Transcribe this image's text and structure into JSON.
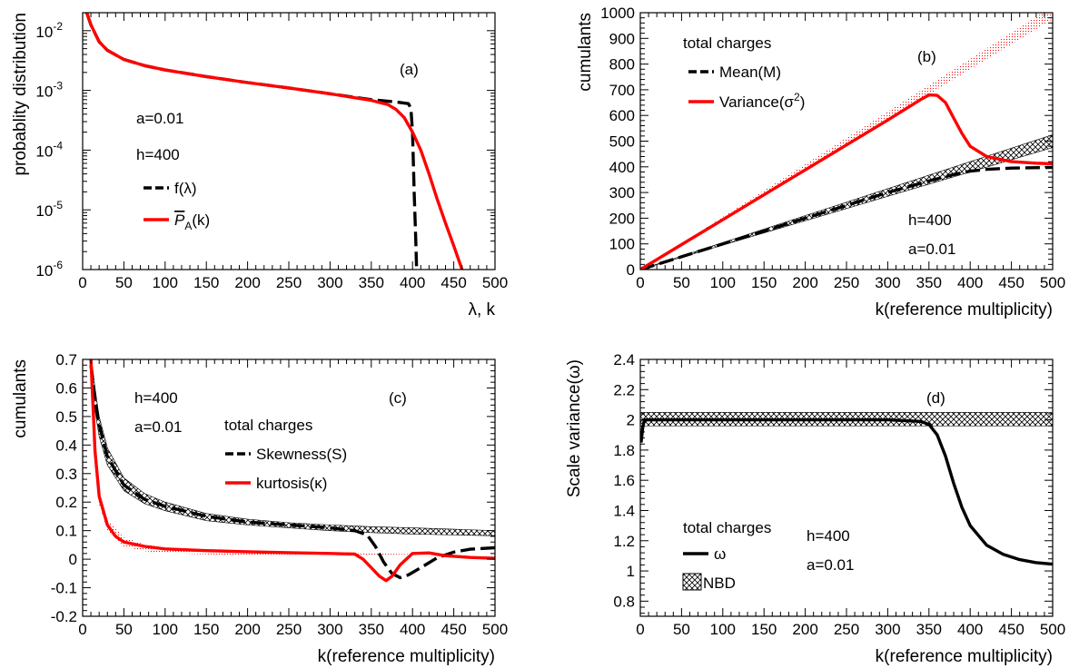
{
  "chart_data": [
    {
      "id": "a",
      "type": "line",
      "panel_label": "(a)",
      "xlabel": "λ, k",
      "ylabel": "probablity distribution",
      "xlim": [
        0,
        500
      ],
      "ylim": [
        1e-06,
        0.02
      ],
      "yscale": "log",
      "x_ticks": [
        0,
        50,
        100,
        150,
        200,
        250,
        300,
        350,
        400,
        450,
        500
      ],
      "y_ticks": [
        {
          "value": 0.01,
          "base": "10",
          "exp": "-2"
        },
        {
          "value": 0.001,
          "base": "10",
          "exp": "-3"
        },
        {
          "value": 0.0001,
          "base": "10",
          "exp": "-4"
        },
        {
          "value": 1e-05,
          "base": "10",
          "exp": "-5"
        },
        {
          "value": 1e-06,
          "base": "10",
          "exp": "-6"
        }
      ],
      "annotations": [
        "a=0.01",
        "h=400"
      ],
      "series": [
        {
          "name": "f(λ)",
          "color": "#000000",
          "dash": "dash",
          "x": [
            5,
            10,
            20,
            30,
            50,
            75,
            100,
            150,
            200,
            250,
            300,
            350,
            380,
            395,
            398,
            400,
            402,
            404,
            405
          ],
          "y": [
            0.02,
            0.0125,
            0.0065,
            0.0047,
            0.0033,
            0.0026,
            0.0022,
            0.0017,
            0.00135,
            0.0011,
            0.00088,
            0.0007,
            0.00064,
            0.0006,
            0.0005,
            0.0002,
            2e-05,
            3e-06,
            1e-06
          ]
        },
        {
          "name": "P_A(k)",
          "legend_main": "P",
          "legend_sub": "A",
          "legend_tail": "(k)",
          "color": "#ff0000",
          "dash": "solid",
          "x": [
            5,
            10,
            20,
            30,
            50,
            75,
            100,
            150,
            200,
            250,
            300,
            350,
            370,
            380,
            390,
            400,
            410,
            420,
            430,
            440,
            450,
            460
          ],
          "y": [
            0.02,
            0.0125,
            0.0065,
            0.0047,
            0.0033,
            0.0026,
            0.0022,
            0.0017,
            0.00135,
            0.0011,
            0.00088,
            0.00068,
            0.00058,
            0.00048,
            0.00035,
            0.0002,
            0.0001,
            4e-05,
            1.5e-05,
            6e-06,
            2.5e-06,
            1e-06
          ]
        }
      ]
    },
    {
      "id": "b",
      "type": "line",
      "panel_label": "(b)",
      "xlabel": "k(reference multiplicity)",
      "ylabel": "cumulants",
      "xlim": [
        0,
        500
      ],
      "ylim": [
        0,
        1000
      ],
      "x_ticks": [
        0,
        50,
        100,
        150,
        200,
        250,
        300,
        350,
        400,
        450,
        500
      ],
      "y_ticks": [
        0,
        100,
        200,
        300,
        400,
        500,
        600,
        700,
        800,
        900,
        1000
      ],
      "legend_title": "total charges",
      "annotations": [
        "h=400",
        "a=0.01"
      ],
      "bands": [
        {
          "style": "red-dots",
          "x": [
            0,
            500
          ],
          "lower": [
            0,
            975
          ],
          "upper": [
            0,
            1025
          ]
        },
        {
          "style": "hatch",
          "x": [
            0,
            500
          ],
          "lower": [
            0,
            475
          ],
          "upper": [
            0,
            525
          ]
        }
      ],
      "series": [
        {
          "name": "Mean(M)",
          "color": "#000000",
          "dash": "dash",
          "x": [
            0,
            50,
            100,
            150,
            200,
            250,
            300,
            350,
            380,
            400,
            420,
            450,
            500
          ],
          "y": [
            0,
            50,
            100,
            150,
            200,
            250,
            300,
            345,
            370,
            383,
            390,
            395,
            398
          ]
        },
        {
          "name": "Variance(σ²)",
          "legend_main": "Variance(σ",
          "legend_sup": "2",
          "legend_tail": ")",
          "color": "#ff0000",
          "dash": "solid",
          "x": [
            0,
            50,
            100,
            150,
            200,
            250,
            300,
            340,
            350,
            360,
            370,
            380,
            390,
            400,
            420,
            450,
            480,
            500
          ],
          "y": [
            0,
            97,
            194,
            291,
            388,
            485,
            582,
            662,
            680,
            678,
            650,
            590,
            530,
            480,
            440,
            420,
            414,
            412
          ]
        }
      ]
    },
    {
      "id": "c",
      "type": "line",
      "panel_label": "(c)",
      "xlabel": "k(reference multiplicity)",
      "ylabel": "cumulants",
      "xlim": [
        0,
        500
      ],
      "ylim": [
        -0.2,
        0.7
      ],
      "x_ticks": [
        0,
        50,
        100,
        150,
        200,
        250,
        300,
        350,
        400,
        450,
        500
      ],
      "y_ticks": [
        -0.2,
        -0.1,
        0,
        0.1,
        0.2,
        0.3,
        0.4,
        0.5,
        0.6,
        0.7
      ],
      "y_tick_labels": [
        "-0.2",
        "-0.1",
        "0",
        "0.1",
        "0.2",
        "0.3",
        "0.4",
        "0.5",
        "0.6",
        "0.7"
      ],
      "legend_title": "total charges",
      "annotations": [
        "h=400",
        "a=0.01"
      ],
      "bands": [
        {
          "style": "hatch",
          "x": [
            10,
            15,
            20,
            30,
            50,
            75,
            100,
            150,
            200,
            250,
            300,
            350,
            400,
            450,
            500
          ],
          "lower": [
            0.64,
            0.52,
            0.43,
            0.33,
            0.24,
            0.195,
            0.17,
            0.135,
            0.12,
            0.11,
            0.1,
            0.093,
            0.088,
            0.085,
            0.082
          ],
          "upper": [
            0.72,
            0.6,
            0.5,
            0.39,
            0.285,
            0.23,
            0.2,
            0.16,
            0.14,
            0.128,
            0.12,
            0.114,
            0.11,
            0.105,
            0.1
          ]
        },
        {
          "style": "red-dots",
          "x": [
            10,
            15,
            20,
            30,
            50,
            75,
            100,
            150,
            200,
            250,
            300,
            350,
            400,
            450,
            500
          ],
          "lower": [
            0.6,
            0.34,
            0.19,
            0.1,
            0.045,
            0.028,
            0.021,
            0.017,
            0.015,
            0.013,
            0.012,
            0.011,
            0.01,
            0.009,
            0.008
          ],
          "upper": [
            0.66,
            0.4,
            0.24,
            0.14,
            0.075,
            0.052,
            0.04,
            0.03,
            0.026,
            0.024,
            0.022,
            0.02,
            0.018,
            0.016,
            0.015
          ]
        }
      ],
      "series": [
        {
          "name": "Skewness(S)",
          "color": "#000000",
          "dash": "dash",
          "x": [
            10,
            15,
            20,
            30,
            50,
            75,
            100,
            150,
            200,
            250,
            300,
            330,
            345,
            355,
            365,
            375,
            385,
            395,
            410,
            430,
            450,
            470,
            500
          ],
          "y": [
            0.68,
            0.56,
            0.47,
            0.36,
            0.26,
            0.21,
            0.185,
            0.15,
            0.13,
            0.12,
            0.11,
            0.1,
            0.085,
            0.045,
            -0.01,
            -0.05,
            -0.065,
            -0.055,
            -0.03,
            0.005,
            0.025,
            0.035,
            0.04
          ]
        },
        {
          "name": "kurtosis(κ)",
          "color": "#ff0000",
          "dash": "solid",
          "x": [
            10,
            15,
            20,
            30,
            40,
            50,
            75,
            100,
            150,
            200,
            250,
            300,
            330,
            340,
            350,
            360,
            368,
            375,
            385,
            400,
            420,
            440,
            470,
            500
          ],
          "y": [
            0.7,
            0.38,
            0.22,
            0.12,
            0.08,
            0.06,
            0.045,
            0.036,
            0.03,
            0.026,
            0.023,
            0.02,
            0.018,
            0.0,
            -0.03,
            -0.06,
            -0.075,
            -0.06,
            -0.02,
            0.02,
            0.022,
            0.012,
            0.006,
            0.003
          ]
        }
      ]
    },
    {
      "id": "d",
      "type": "line",
      "panel_label": "(d)",
      "xlabel": "k(reference multiplicity)",
      "ylabel": "Scale variance(ω)",
      "xlim": [
        0,
        500
      ],
      "ylim": [
        0.7,
        2.4
      ],
      "x_ticks": [
        0,
        50,
        100,
        150,
        200,
        250,
        300,
        350,
        400,
        450,
        500
      ],
      "y_ticks": [
        0.8,
        1.0,
        1.2,
        1.4,
        1.6,
        1.8,
        2.0,
        2.2,
        2.4
      ],
      "y_tick_labels": [
        "0.8",
        "1",
        "1.2",
        "1.4",
        "1.6",
        "1.8",
        "2",
        "2.2",
        "2.4"
      ],
      "legend_title": "total charges",
      "annotations": [
        "h=400",
        "a=0.01"
      ],
      "bands": [
        {
          "style": "hatch",
          "legend": "NBD",
          "x": [
            0,
            500
          ],
          "lower": [
            1.96,
            1.96
          ],
          "upper": [
            2.05,
            2.05
          ]
        }
      ],
      "series": [
        {
          "name": "ω",
          "color": "#000000",
          "dash": "solid",
          "x": [
            1,
            3,
            5,
            10,
            50,
            100,
            200,
            300,
            340,
            350,
            360,
            370,
            380,
            390,
            400,
            420,
            440,
            460,
            480,
            500
          ],
          "y": [
            1.85,
            1.95,
            2.0,
            2.0,
            2.0,
            2.0,
            2.0,
            2.0,
            1.99,
            1.97,
            1.9,
            1.76,
            1.58,
            1.42,
            1.3,
            1.17,
            1.11,
            1.075,
            1.055,
            1.045
          ]
        }
      ]
    }
  ]
}
